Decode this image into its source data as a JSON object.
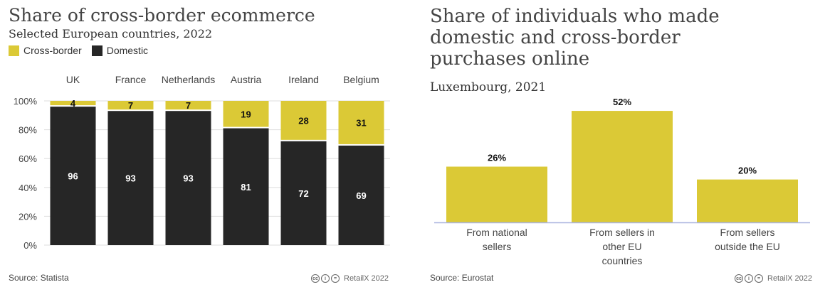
{
  "colors": {
    "cross_border": "#dbc936",
    "domestic": "#262626",
    "bar_right": "#dbc936",
    "grid": "#dddddd",
    "baseline": "#aab4e0"
  },
  "left": {
    "title": "Share of cross-border ecommerce",
    "subtitle": "Selected European countries, 2022",
    "legend": [
      {
        "label": "Cross-border",
        "color": "#dbc936"
      },
      {
        "label": "Domestic",
        "color": "#262626"
      }
    ],
    "source": "Source: Statista",
    "credit": "RetailX 2022"
  },
  "right": {
    "title": "Share of individuals who made domestic and cross-border purchases online",
    "subtitle": "Luxembourg, 2021",
    "source": "Source: Eurostat",
    "credit": "RetailX 2022"
  },
  "chart_data": [
    {
      "type": "bar",
      "stacked": true,
      "title": "Share of cross-border ecommerce",
      "subtitle": "Selected European countries, 2022",
      "categories": [
        "UK",
        "France",
        "Netherlands",
        "Austria",
        "Ireland",
        "Belgium"
      ],
      "series": [
        {
          "name": "Domestic",
          "values": [
            96,
            93,
            93,
            81,
            72,
            69
          ]
        },
        {
          "name": "Cross-border",
          "values": [
            4,
            7,
            7,
            19,
            28,
            31
          ]
        }
      ],
      "yticks": [
        "0%",
        "20%",
        "40%",
        "60%",
        "80%",
        "100%"
      ],
      "ylim": [
        0,
        100
      ],
      "legend_position": "top-left",
      "grid": true
    },
    {
      "type": "bar",
      "title": "Share of individuals who made domestic and cross-border purchases online",
      "subtitle": "Luxembourg, 2021",
      "categories": [
        [
          "From national",
          "sellers"
        ],
        [
          "From sellers in",
          "other EU",
          "countries"
        ],
        [
          "From sellers",
          "outside the EU"
        ]
      ],
      "values": [
        26,
        52,
        20
      ],
      "value_labels": [
        "26%",
        "52%",
        "20%"
      ],
      "ylim": [
        0,
        56
      ],
      "grid": false
    }
  ]
}
